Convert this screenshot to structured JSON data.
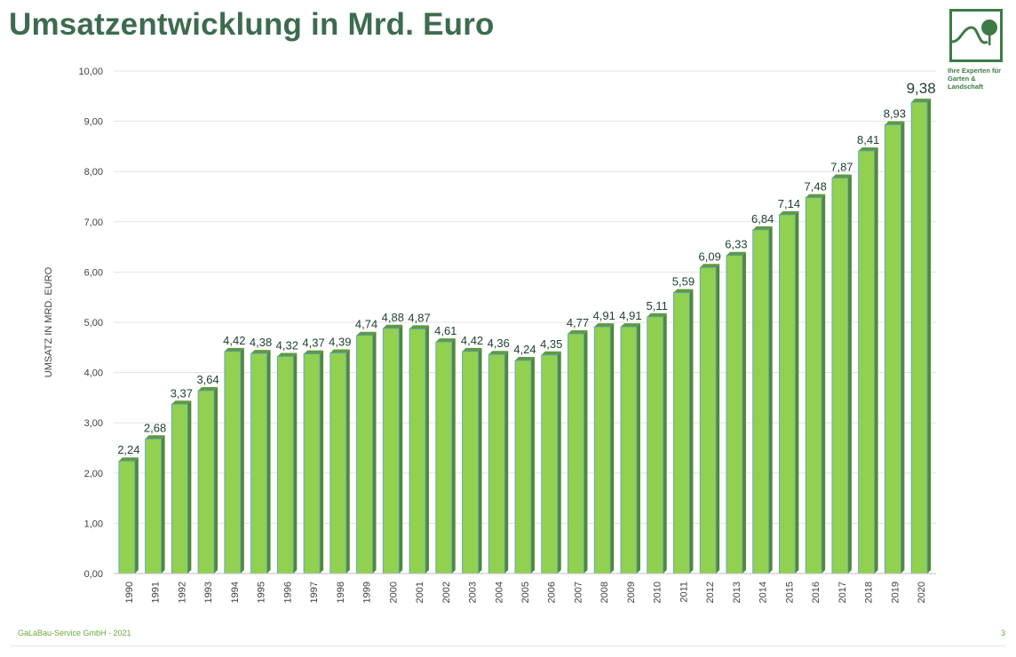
{
  "title": "Umsatzentwicklung in Mrd. Euro",
  "logo": {
    "line1": "Ihre Experten für",
    "line2": "Garten & Landschaft"
  },
  "footer": {
    "company": "GaLaBau-Service GmbH  -  2021",
    "page": "3"
  },
  "colors": {
    "bar_front": "#92d050",
    "bar_dark": "#4f8a37",
    "bar_edge": "#5b9bd5",
    "title": "#3d6b4f",
    "label": "#1f3f2e",
    "grid": "#e3e3e3"
  },
  "chart_data": {
    "type": "bar",
    "title": "",
    "xlabel": "",
    "ylabel": "UMSATZ IN MRD. EURO",
    "ylim": [
      0,
      10
    ],
    "ytick_step": 1,
    "ytick_labels": [
      "0,00",
      "1,00",
      "2,00",
      "3,00",
      "4,00",
      "5,00",
      "6,00",
      "7,00",
      "8,00",
      "9,00",
      "10,00"
    ],
    "grid": true,
    "categories": [
      "1990",
      "1991",
      "1992",
      "1993",
      "1994",
      "1995",
      "1996",
      "1997",
      "1998",
      "1999",
      "2000",
      "2001",
      "2002",
      "2003",
      "2004",
      "2005",
      "2006",
      "2007",
      "2008",
      "2009",
      "2010",
      "2011",
      "2012",
      "2013",
      "2014",
      "2015",
      "2016",
      "2017",
      "2018",
      "2019",
      "2020"
    ],
    "values": [
      2.24,
      2.68,
      3.37,
      3.64,
      4.42,
      4.38,
      4.32,
      4.37,
      4.39,
      4.74,
      4.88,
      4.87,
      4.61,
      4.42,
      4.36,
      4.24,
      4.35,
      4.77,
      4.91,
      4.91,
      5.11,
      5.59,
      6.09,
      6.33,
      6.84,
      7.14,
      7.48,
      7.87,
      8.41,
      8.93,
      9.38
    ],
    "labels": [
      "2,24",
      "2,68",
      "3,37",
      "3,64",
      "4,42",
      "4,38",
      "4,32",
      "4,37",
      "4,39",
      "4,74",
      "4,88",
      "4,87",
      "4,61",
      "4,42",
      "4,36",
      "4,24",
      "4,35",
      "4,77",
      "4,91",
      "4,91",
      "5,11",
      "5,59",
      "6,09",
      "6,33",
      "6,84",
      "7,14",
      "7,48",
      "7,87",
      "8,41",
      "8,93",
      "9,38"
    ]
  }
}
